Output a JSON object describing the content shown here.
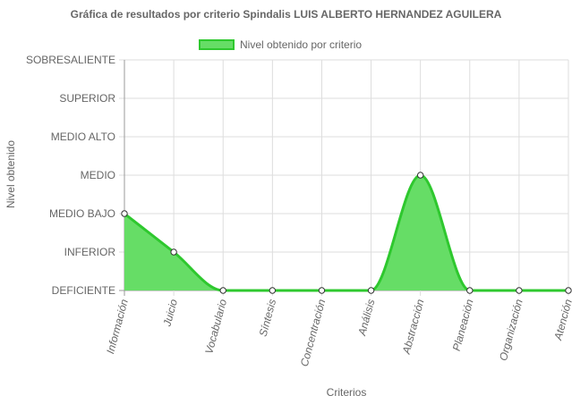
{
  "chart_data": {
    "type": "area",
    "title": "Gráfica de resultados por criterio Spindalis LUIS ALBERTO HERNANDEZ AGUILERA",
    "xlabel": "Criterios",
    "ylabel": "Nivel obtenido",
    "y_levels": [
      "DEFICIENTE",
      "INFERIOR",
      "MEDIO BAJO",
      "MEDIO",
      "MEDIO ALTO",
      "SUPERIOR",
      "SOBRESALIENTE"
    ],
    "categories": [
      "Información",
      "Juicio",
      "Vocabulario",
      "Síntesis",
      "Concentración",
      "Análisis",
      "Abstracción",
      "Planeación",
      "Organización",
      "Atención"
    ],
    "series": [
      {
        "name": "Nivel obtenido por criterio",
        "values": [
          2,
          1,
          0,
          0,
          0,
          0,
          3,
          0,
          0,
          0
        ]
      }
    ],
    "ylim": [
      0,
      6
    ],
    "grid": true,
    "legend_position": "top",
    "colors": {
      "fill": "#66dd66",
      "line": "#2ec82e",
      "grid": "#dddddd",
      "axis": "#999999"
    }
  }
}
